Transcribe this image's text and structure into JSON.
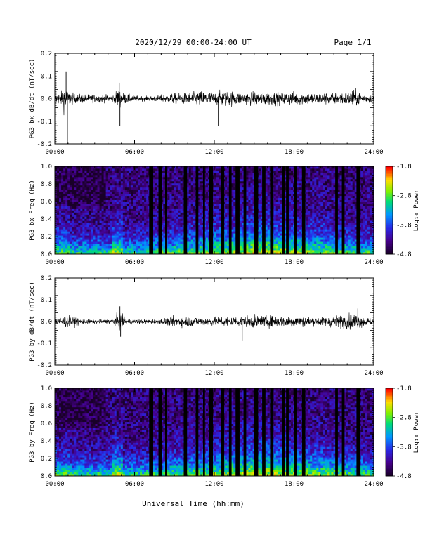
{
  "header": {
    "title": "2020/12/29  00:00-24:00 UT",
    "page": "Page 1/1"
  },
  "footer": {
    "xlabel": "Universal Time (hh:mm)"
  },
  "chart_data": [
    {
      "type": "line",
      "ylabel": "PG3 bx dB/dt (nT/sec)",
      "xlabel": "",
      "xlim": [
        0,
        24
      ],
      "ylim": [
        -0.2,
        0.2
      ],
      "x_ticks": [
        "00:00",
        "06:00",
        "12:00",
        "18:00",
        "24:00"
      ],
      "y_ticks": [
        "0.2",
        "0.1",
        "0.0",
        "-0.1",
        "-0.2"
      ],
      "y_tick_values": [
        0.2,
        0.1,
        0.0,
        -0.1,
        -0.2
      ],
      "envelope_hours": [
        0,
        0.5,
        0.7,
        0.9,
        1,
        1.1,
        1.5,
        2,
        3,
        4,
        4.5,
        4.75,
        4.9,
        5.1,
        5.5,
        6,
        7,
        8,
        9,
        10,
        11,
        12,
        13,
        14,
        15,
        16,
        17,
        17.5,
        18,
        19,
        20,
        21,
        22,
        22.5,
        23,
        24
      ],
      "envelope_amplitude": [
        0.03,
        0.05,
        0.09,
        0.07,
        0.04,
        0.05,
        0.03,
        0.03,
        0.025,
        0.025,
        0.03,
        0.07,
        0.06,
        0.04,
        0.03,
        0.02,
        0.015,
        0.025,
        0.035,
        0.04,
        0.05,
        0.045,
        0.055,
        0.04,
        0.045,
        0.05,
        0.04,
        0.045,
        0.045,
        0.04,
        0.04,
        0.04,
        0.045,
        0.06,
        0.04,
        0.025
      ],
      "spikes": [
        {
          "x": 0.85,
          "y": 0.12
        },
        {
          "x": 0.95,
          "y": -0.2
        },
        {
          "x": 4.85,
          "y": 0.07
        },
        {
          "x": 4.9,
          "y": -0.12
        },
        {
          "x": 12.3,
          "y": -0.12
        }
      ]
    },
    {
      "type": "heatmap",
      "ylabel": "PG3 bx Freq (Hz)",
      "xlabel": "",
      "xlim": [
        0,
        24
      ],
      "ylim": [
        0,
        1.0
      ],
      "x_ticks": [
        "00:00",
        "06:00",
        "12:00",
        "18:00",
        "24:00"
      ],
      "y_ticks": [
        "1.0",
        "0.8",
        "0.6",
        "0.4",
        "0.2",
        "0.0"
      ],
      "y_tick_values": [
        1.0,
        0.8,
        0.6,
        0.4,
        0.2,
        0.0
      ],
      "colorbar": {
        "label": "Log₁₀ Power",
        "ticks": [
          "-1.8",
          "-2.8",
          "-3.8",
          "-4.8"
        ],
        "tick_values": [
          -1.8,
          -2.8,
          -3.8,
          -4.8
        ],
        "range": [
          -4.8,
          -1.8
        ]
      },
      "data_gaps_hours": [
        [
          7.1,
          7.4
        ],
        [
          7.8,
          8.05
        ],
        [
          8.3,
          8.45
        ],
        [
          9.7,
          9.95
        ],
        [
          10.6,
          10.8
        ],
        [
          11.15,
          11.3
        ],
        [
          11.6,
          11.9
        ],
        [
          12.5,
          12.75
        ],
        [
          13.1,
          13.3
        ],
        [
          13.6,
          13.9
        ],
        [
          14.2,
          14.4
        ],
        [
          15.0,
          15.3
        ],
        [
          15.6,
          15.85
        ],
        [
          16.2,
          16.45
        ],
        [
          17.1,
          17.3
        ],
        [
          17.4,
          17.6
        ],
        [
          18.0,
          18.2
        ],
        [
          18.6,
          18.85
        ],
        [
          21.1,
          21.3
        ],
        [
          21.6,
          21.8
        ],
        [
          22.7,
          23.0
        ]
      ]
    },
    {
      "type": "line",
      "ylabel": "PG3 by dB/dt (nT/sec)",
      "xlabel": "",
      "xlim": [
        0,
        24
      ],
      "ylim": [
        -0.2,
        0.2
      ],
      "x_ticks": [
        "00:00",
        "06:00",
        "12:00",
        "18:00",
        "24:00"
      ],
      "y_ticks": [
        "0.2",
        "0.1",
        "0.0",
        "-0.1",
        "-0.2"
      ],
      "y_tick_values": [
        0.2,
        0.1,
        0.0,
        -0.1,
        -0.2
      ],
      "envelope_hours": [
        0,
        0.5,
        0.9,
        1.5,
        2,
        3,
        4,
        4.5,
        4.75,
        4.9,
        5.1,
        5.5,
        6,
        7,
        8,
        8.5,
        9,
        10,
        11,
        12,
        13,
        14,
        15,
        16,
        17,
        18,
        19,
        20,
        21,
        22,
        22.5,
        23,
        24
      ],
      "envelope_amplitude": [
        0.025,
        0.04,
        0.04,
        0.03,
        0.02,
        0.015,
        0.015,
        0.025,
        0.06,
        0.055,
        0.04,
        0.02,
        0.015,
        0.015,
        0.02,
        0.03,
        0.035,
        0.035,
        0.03,
        0.03,
        0.04,
        0.035,
        0.045,
        0.04,
        0.04,
        0.04,
        0.035,
        0.03,
        0.04,
        0.05,
        0.06,
        0.04,
        0.02
      ],
      "spikes": [
        {
          "x": 4.9,
          "y": 0.07
        },
        {
          "x": 4.95,
          "y": -0.07
        },
        {
          "x": 14.1,
          "y": -0.09
        },
        {
          "x": 22.8,
          "y": 0.06
        }
      ]
    },
    {
      "type": "heatmap",
      "ylabel": "PG3 by Freq (Hz)",
      "xlabel": "",
      "xlim": [
        0,
        24
      ],
      "ylim": [
        0,
        1.0
      ],
      "x_ticks": [
        "00:00",
        "06:00",
        "12:00",
        "18:00",
        "24:00"
      ],
      "y_ticks": [
        "1.0",
        "0.8",
        "0.6",
        "0.4",
        "0.2",
        "0.0"
      ],
      "y_tick_values": [
        1.0,
        0.8,
        0.6,
        0.4,
        0.2,
        0.0
      ],
      "colorbar": {
        "label": "Log₁₀ Power",
        "ticks": [
          "-1.8",
          "-2.8",
          "-3.8",
          "-4.8"
        ],
        "tick_values": [
          -1.8,
          -2.8,
          -3.8,
          -4.8
        ],
        "range": [
          -4.8,
          -1.8
        ]
      },
      "data_gaps_hours": [
        [
          7.1,
          7.4
        ],
        [
          7.8,
          8.05
        ],
        [
          8.3,
          8.45
        ],
        [
          9.7,
          9.95
        ],
        [
          10.6,
          10.8
        ],
        [
          11.15,
          11.3
        ],
        [
          11.6,
          11.9
        ],
        [
          12.5,
          12.75
        ],
        [
          13.1,
          13.3
        ],
        [
          13.6,
          13.9
        ],
        [
          14.2,
          14.4
        ],
        [
          15.0,
          15.3
        ],
        [
          15.6,
          15.85
        ],
        [
          16.2,
          16.45
        ],
        [
          17.1,
          17.3
        ],
        [
          17.4,
          17.6
        ],
        [
          18.0,
          18.2
        ],
        [
          18.6,
          18.85
        ],
        [
          21.1,
          21.3
        ],
        [
          21.6,
          21.8
        ],
        [
          22.7,
          23.0
        ]
      ]
    }
  ]
}
